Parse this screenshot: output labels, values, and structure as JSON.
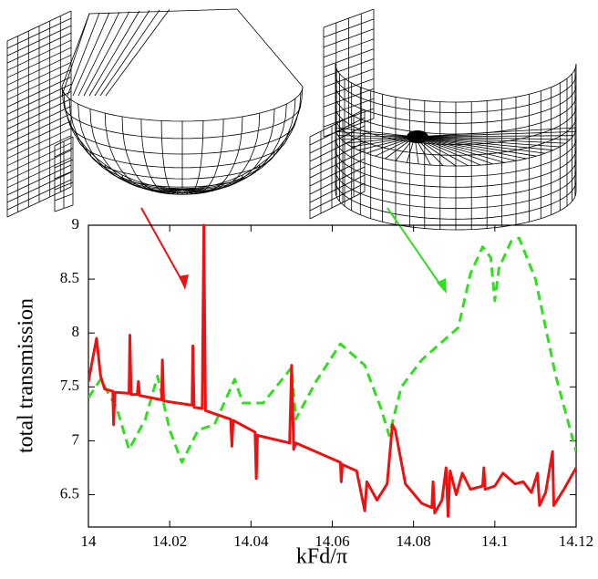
{
  "chart_data": {
    "type": "line",
    "x_label": "kFd/π",
    "y_label": "total transmission",
    "xlim": [
      14,
      14.12
    ],
    "xticks": [
      14,
      14.02,
      14.04,
      14.06,
      14.08,
      14.1,
      14.12
    ],
    "ylim": [
      6.2,
      9
    ],
    "yticks": [
      6.5,
      7,
      7.5,
      8,
      8.5,
      9
    ],
    "series": [
      {
        "color": "#ee1111",
        "dash": false,
        "x": [
          14,
          14.001,
          14.002,
          14.003,
          14.004,
          14.006,
          14.0062,
          14.0065,
          14.01,
          14.0102,
          14.0105,
          14.012,
          14.0123,
          14.0126,
          14.018,
          14.0182,
          14.0185,
          14.0255,
          14.0257,
          14.026,
          14.028,
          14.0284,
          14.0288,
          14.035,
          14.0353,
          14.0356,
          14.041,
          14.0413,
          14.0416,
          14.0495,
          14.05,
          14.0505,
          14.051,
          14.062,
          14.0622,
          14.0625,
          14.066,
          14.068,
          14.0685,
          14.071,
          14.0735,
          14.0748,
          14.0755,
          14.078,
          14.082,
          14.0845,
          14.0848,
          14.0852,
          14.087,
          14.088,
          14.0885,
          14.089,
          14.0905,
          14.092,
          14.094,
          14.097,
          14.0973,
          14.0976,
          14.1,
          14.102,
          14.105,
          14.107,
          14.109,
          14.1105,
          14.111,
          14.1125,
          14.1142,
          14.1145,
          14.117,
          14.12
        ],
        "values": [
          7.55,
          7.75,
          7.95,
          7.6,
          7.48,
          7.46,
          7.15,
          7.45,
          7.44,
          7.98,
          7.43,
          7.43,
          7.55,
          7.42,
          7.38,
          7.75,
          7.37,
          7.33,
          7.88,
          7.31,
          7.3,
          9,
          7.28,
          7.2,
          6.95,
          7.19,
          7.08,
          6.65,
          7.05,
          6.98,
          7.7,
          6.92,
          6.98,
          6.8,
          6.62,
          6.78,
          6.72,
          6.35,
          6.62,
          6.45,
          6.6,
          7.15,
          7.1,
          6.6,
          6.42,
          6.38,
          6.62,
          6.33,
          6.45,
          6.75,
          6.3,
          6.72,
          6.5,
          6.7,
          6.55,
          6.58,
          6.75,
          6.55,
          6.58,
          6.7,
          6.6,
          6.62,
          6.52,
          6.7,
          6.4,
          6.52,
          6.9,
          6.4,
          6.55,
          6.75
        ]
      },
      {
        "color": "#33dd22",
        "dash": true,
        "x": [
          14,
          14.003,
          14.007,
          14.01,
          14.014,
          14.017,
          14.02,
          14.023,
          14.027,
          14.031,
          14.036,
          14.038,
          14.043,
          14.05,
          14.051,
          14.056,
          14.062,
          14.068,
          14.072,
          14.074,
          14.077,
          14.082,
          14.088,
          14.091,
          14.094,
          14.097,
          14.099,
          14.1,
          14.101,
          14.104,
          14.106,
          14.11,
          14.115,
          14.12
        ],
        "values": [
          7.4,
          7.57,
          7.3,
          6.92,
          7.2,
          7.6,
          7.1,
          6.8,
          7.1,
          7.15,
          7.57,
          7.35,
          7.35,
          7.68,
          7.2,
          7.55,
          7.9,
          7.7,
          7.3,
          7.05,
          7.5,
          7.75,
          7.95,
          8.05,
          8.55,
          8.8,
          8.7,
          8.3,
          8.6,
          8.85,
          8.88,
          8.5,
          7.6,
          6.9
        ]
      }
    ]
  }
}
